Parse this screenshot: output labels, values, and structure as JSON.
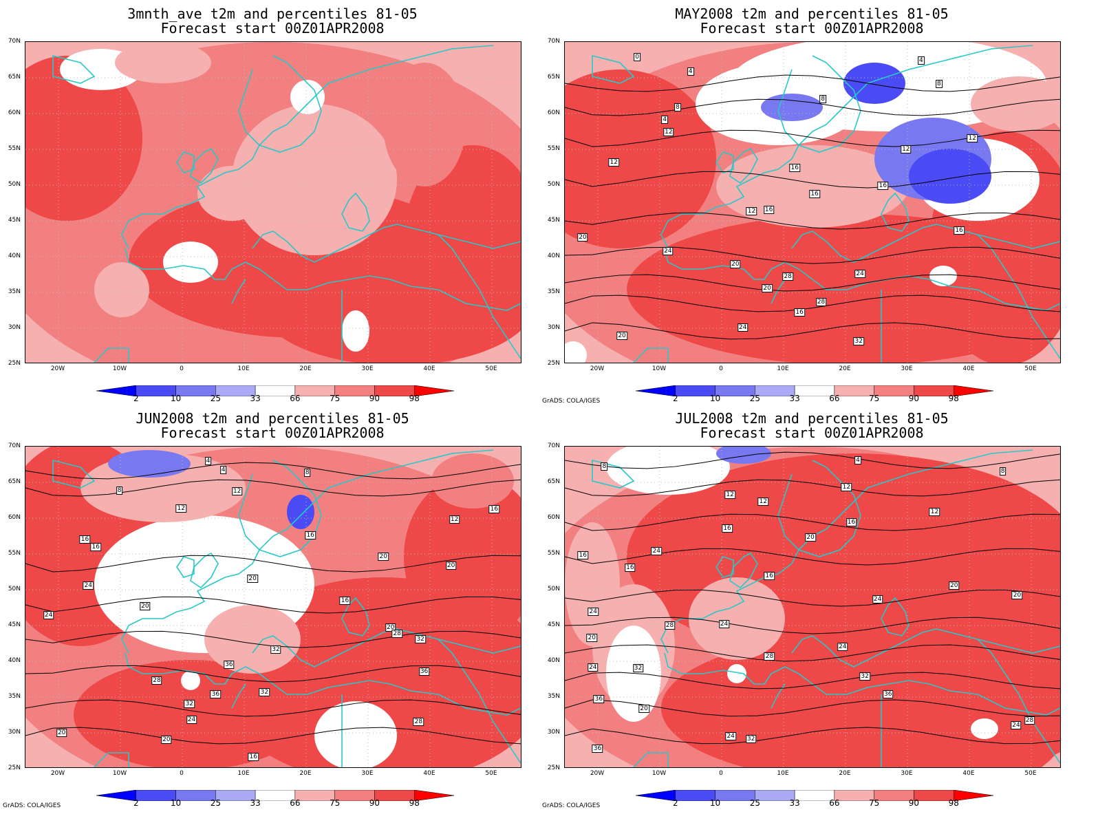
{
  "panels": [
    {
      "title_line1": "3mnth_ave t2m and percentiles 81-05",
      "title_line2": "Forecast start 00Z01APR2008",
      "contour_labels": [],
      "credit": ""
    },
    {
      "title_line1": "MAY2008 t2m and percentiles 81-05",
      "title_line2": "Forecast start 00Z01APR2008",
      "contour_labels": [
        "0",
        "4",
        "4",
        "8",
        "8",
        "8",
        "4",
        "12",
        "12",
        "12",
        "12",
        "16",
        "16",
        "16",
        "16",
        "12",
        "16",
        "20",
        "24",
        "20",
        "24",
        "28",
        "20",
        "28",
        "16",
        "24",
        "20",
        "32"
      ],
      "credit": "GrADS: COLA/IGES"
    },
    {
      "title_line1": "JUN2008 t2m and percentiles 81-05",
      "title_line2": "Forecast start 00Z01APR2008",
      "contour_labels": [
        "4",
        "4",
        "8",
        "8",
        "12",
        "12",
        "16",
        "12",
        "16",
        "16",
        "16",
        "20",
        "20",
        "20",
        "24",
        "16",
        "20",
        "24",
        "20",
        "28",
        "32",
        "32",
        "36",
        "36",
        "28",
        "32",
        "36",
        "32",
        "24",
        "28",
        "20",
        "20",
        "16"
      ],
      "credit": "GrADS: COLA/IGES"
    },
    {
      "title_line1": "JUL2008 t2m and percentiles 81-05",
      "title_line2": "Forecast start 00Z01APR2008",
      "contour_labels": [
        "4",
        "8",
        "8",
        "12",
        "12",
        "12",
        "12",
        "16",
        "16",
        "20",
        "24",
        "16",
        "16",
        "16",
        "20",
        "20",
        "24",
        "24",
        "24",
        "28",
        "20",
        "24",
        "28",
        "32",
        "24",
        "32",
        "36",
        "36",
        "20",
        "28",
        "24",
        "24",
        "32",
        "36"
      ],
      "credit": "GrADS: COLA/IGES"
    }
  ],
  "map": {
    "lat_labels": [
      "70N",
      "65N",
      "60N",
      "55N",
      "50N",
      "45N",
      "40N",
      "35N",
      "30N",
      "25N"
    ],
    "lon_labels": [
      "20W",
      "10W",
      "0",
      "10E",
      "20E",
      "30E",
      "40E",
      "50E"
    ]
  },
  "colorbar": {
    "labels": [
      "2",
      "10",
      "25",
      "33",
      "66",
      "75",
      "90",
      "98"
    ],
    "colors": [
      "#0000ff",
      "#4b4bf5",
      "#7878f0",
      "#aaaaf5",
      "#ffffff",
      "#f7b0b0",
      "#f28080",
      "#ee4848",
      "#ff0000"
    ]
  },
  "colors": {
    "coastline": "#28c8c8",
    "contour": "#000000",
    "above_normal": "#ff0000",
    "below_normal": "#0000ff"
  }
}
